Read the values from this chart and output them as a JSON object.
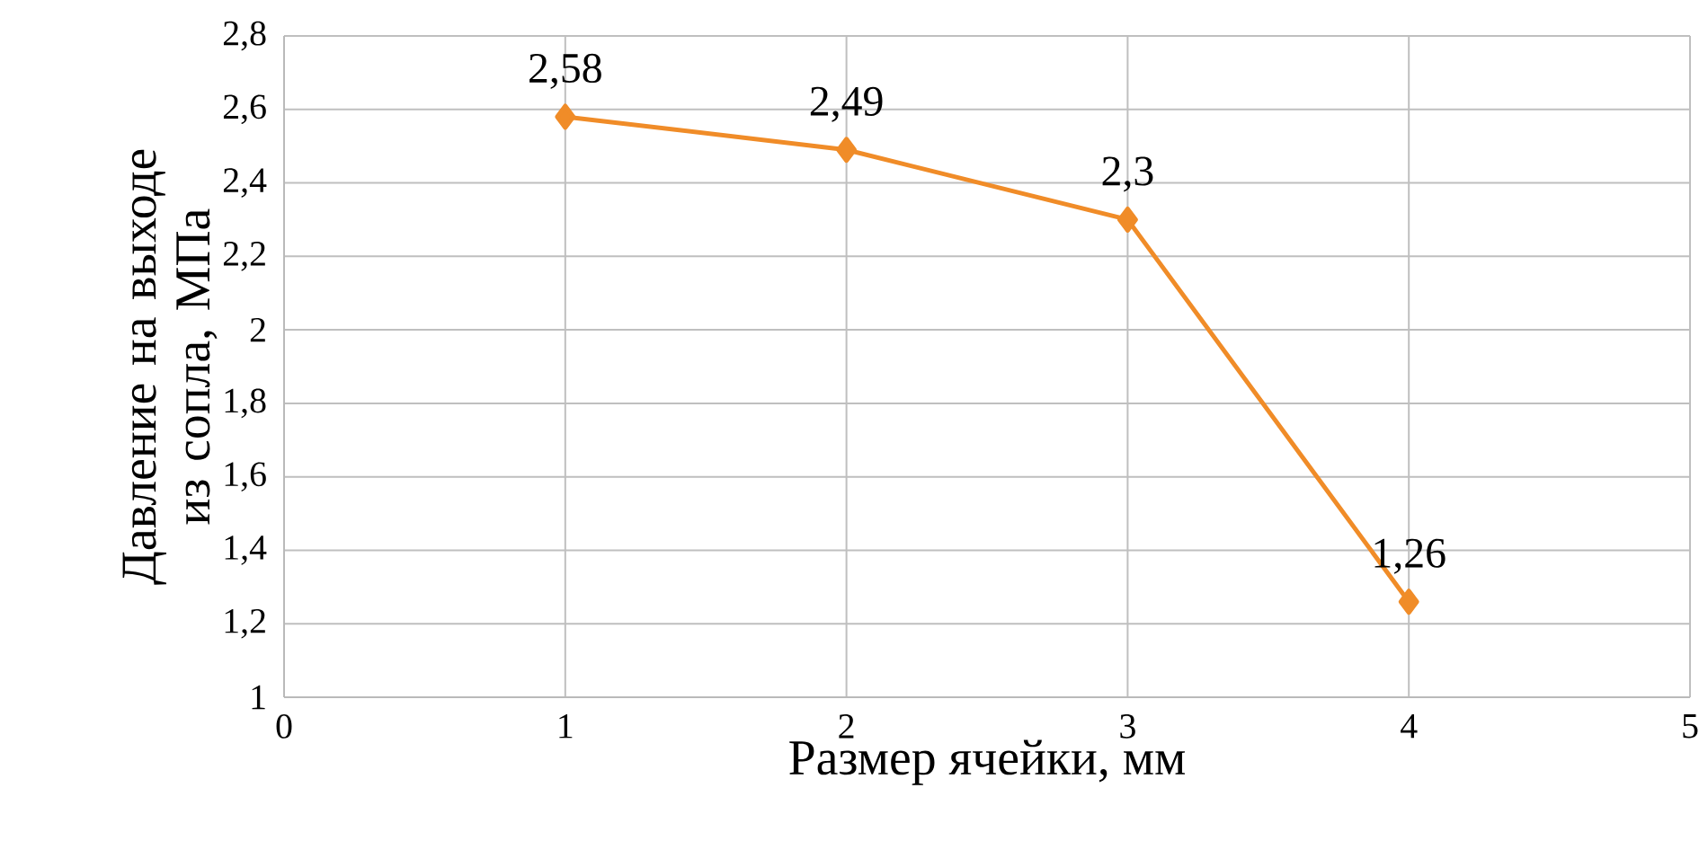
{
  "chart_data": {
    "type": "line",
    "xlabel": "Размер ячейки, мм",
    "ylabel": "Давление на выходе из сопла, МПа",
    "x": [
      1,
      2,
      3,
      4
    ],
    "series": [
      {
        "color": "#f08c28",
        "values": [
          2.58,
          2.49,
          2.3,
          1.26
        ],
        "value_labels": [
          "2,58",
          "2,49",
          "2,3",
          "1,26"
        ]
      }
    ],
    "xlim": [
      0,
      5
    ],
    "xticks": [
      0,
      1,
      2,
      3,
      4,
      5
    ],
    "ylim": [
      1,
      2.8
    ],
    "yticks": [
      1,
      {
        "value": 1.2,
        "label": "1,2"
      },
      {
        "value": 1.4,
        "label": "1,4"
      },
      {
        "value": 1.6,
        "label": "1,6"
      },
      {
        "value": 1.8,
        "label": "1,8"
      },
      2,
      {
        "value": 2.2,
        "label": "2,2"
      },
      {
        "value": 2.4,
        "label": "2,4"
      },
      {
        "value": 2.6,
        "label": "2,6"
      },
      {
        "value": 2.8,
        "label": "2,8"
      }
    ],
    "grid": true,
    "marker": "diamond",
    "line_style": "solid"
  }
}
